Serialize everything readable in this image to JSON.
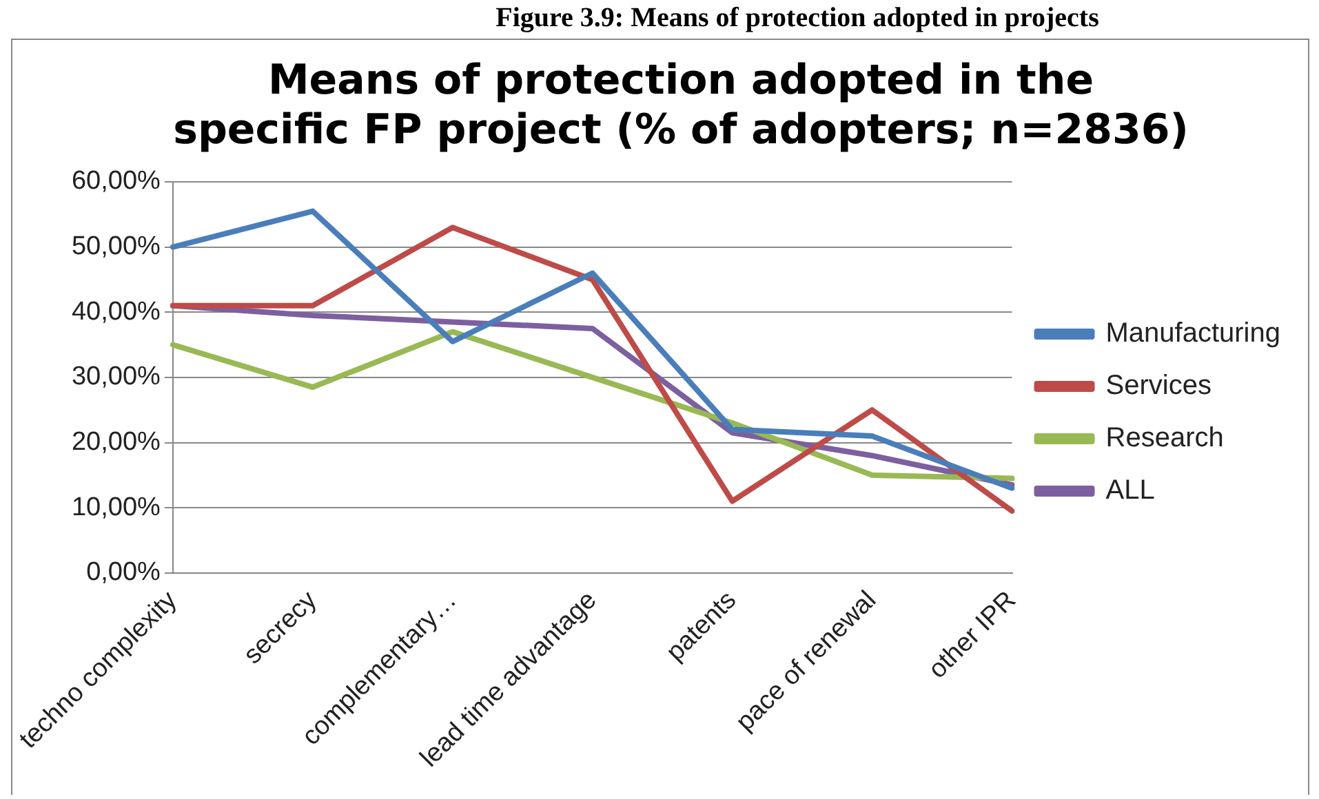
{
  "chart_data": {
    "type": "line",
    "title": "Means of protection adopted in the specific FP project (% of adopters; n=2836)",
    "annotations": [
      "Figure 3.9: Means of protection adopted in projects"
    ],
    "categories": [
      "techno complexity",
      "secrecy",
      "complementary…",
      "lead time advantage",
      "patents",
      "pace of renewal",
      "other IPR"
    ],
    "series": [
      {
        "name": "Manufacturing",
        "color": "#4a7ebb",
        "values": [
          50,
          55.5,
          35.5,
          46,
          22,
          21,
          13
        ]
      },
      {
        "name": "Services",
        "color": "#be4b48",
        "values": [
          41,
          41,
          53,
          45,
          11,
          25,
          9.5
        ]
      },
      {
        "name": "Research",
        "color": "#98b954",
        "values": [
          35,
          28.5,
          37,
          30,
          23,
          15,
          14.5
        ]
      },
      {
        "name": "ALL",
        "color": "#7d5fa0",
        "values": [
          41,
          39.5,
          38.5,
          37.5,
          21.5,
          18,
          13.5
        ]
      }
    ],
    "ylim": [
      0,
      60
    ],
    "yticks": [
      {
        "value": 0,
        "label": "0,00%"
      },
      {
        "value": 10,
        "label": "10,00%"
      },
      {
        "value": 20,
        "label": "20,00%"
      },
      {
        "value": 30,
        "label": "30,00%"
      },
      {
        "value": 40,
        "label": "40,00%"
      },
      {
        "value": 50,
        "label": "50,00%"
      },
      {
        "value": 60,
        "label": "60,00%"
      }
    ],
    "grid": "y",
    "legend": "right",
    "marker": "none",
    "line_style": "solid"
  }
}
